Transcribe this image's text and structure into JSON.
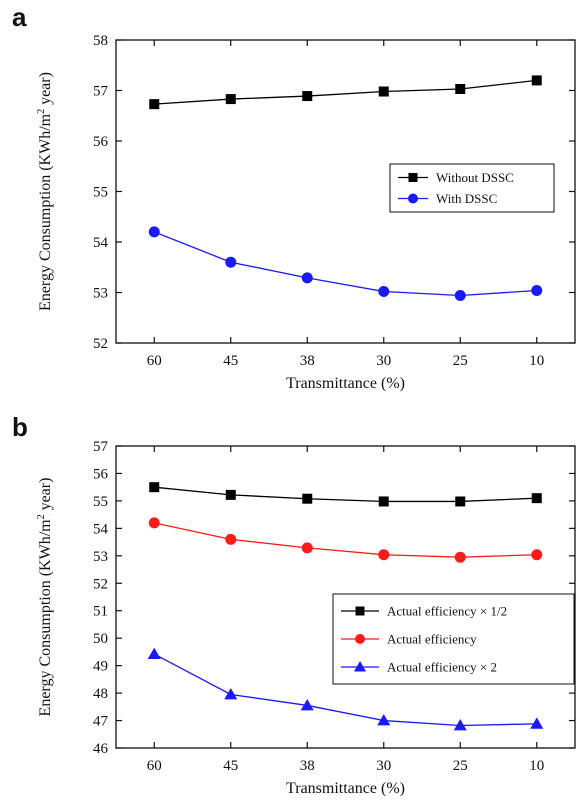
{
  "chart_data": [
    {
      "panel": "a",
      "type": "line",
      "categories": [
        "60",
        "45",
        "38",
        "30",
        "25",
        "10"
      ],
      "xlabel": "Transmittance (%)",
      "ylabel_main": "Energy Consumption (KWh/m",
      "ylabel_sup": "2",
      "ylabel_end": " year)",
      "ylim": [
        52,
        58
      ],
      "yticks": [
        52,
        53,
        54,
        55,
        56,
        57,
        58
      ],
      "legend_placement": "right",
      "series": [
        {
          "name": "Without DSSC",
          "marker": "square",
          "color": "#000000",
          "values": [
            56.73,
            56.83,
            56.89,
            56.98,
            57.03,
            57.2
          ]
        },
        {
          "name": "With DSSC",
          "marker": "circle",
          "color": "#1a1aff",
          "values": [
            54.2,
            53.6,
            53.29,
            53.02,
            52.94,
            53.04
          ]
        }
      ]
    },
    {
      "panel": "b",
      "type": "line",
      "categories": [
        "60",
        "45",
        "38",
        "30",
        "25",
        "10"
      ],
      "xlabel": "Transmittance (%)",
      "ylabel_main": "Energy Consumption (KWh/m",
      "ylabel_sup": "2",
      "ylabel_end": " year)",
      "ylim": [
        46,
        57
      ],
      "yticks": [
        46,
        47,
        48,
        49,
        50,
        51,
        52,
        53,
        54,
        55,
        56,
        57
      ],
      "legend_placement": "bottom-right",
      "series": [
        {
          "name": "Actual efficiency × 1/2",
          "marker": "square",
          "color": "#000000",
          "values": [
            55.5,
            55.22,
            55.08,
            54.98,
            54.98,
            55.1
          ]
        },
        {
          "name": "Actual efficiency",
          "marker": "circle",
          "color": "#ff1a1a",
          "values": [
            54.2,
            53.6,
            53.29,
            53.04,
            52.95,
            53.04
          ]
        },
        {
          "name": "Actual efficiency × 2",
          "marker": "triangle",
          "color": "#1a1aff",
          "values": [
            49.42,
            47.95,
            47.55,
            47.0,
            46.82,
            46.88
          ]
        }
      ]
    }
  ]
}
